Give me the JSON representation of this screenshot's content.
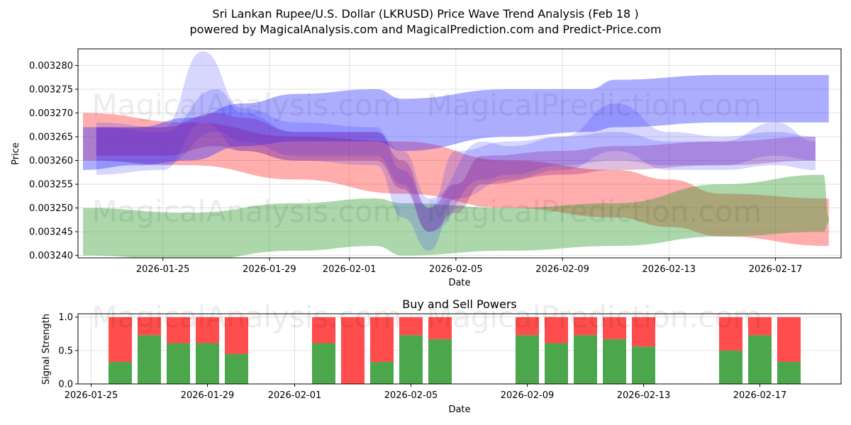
{
  "header": {
    "title_line1": "Sri Lankan Rupee/U.S. Dollar (LKRUSD) Price Wave Trend Analysis (Feb 18 )",
    "title_line2": "powered by MagicalAnalysis.com and MagicalPrediction.com and Predict-Price.com"
  },
  "watermarks": [
    "MagicalAnalysis.com",
    "MagicalPrediction.com"
  ],
  "colors": {
    "red": "#ff3333",
    "green": "#2e9a2e",
    "blue": "#3333ff",
    "buy": "#4ca64c",
    "sell": "#ff4c4c"
  },
  "chart_data": [
    {
      "type": "area",
      "title": "",
      "xlabel": "Date",
      "ylabel": "Price",
      "grid": true,
      "x_ticks": [
        "2026-01-25",
        "2026-01-29",
        "2026-02-01",
        "2026-02-05",
        "2026-02-09",
        "2026-02-13",
        "2026-02-17"
      ],
      "y_ticks": [
        "0.003240",
        "0.003245",
        "0.003250",
        "0.003255",
        "0.003260",
        "0.003265",
        "0.003270",
        "0.003275",
        "0.003280"
      ],
      "ylim": [
        0.0032395,
        0.0032835
      ],
      "x_start": "2026-01-22",
      "x_end": "2026-02-19",
      "series": [
        {
          "name": "red-trend-band",
          "color": "red",
          "opacity": 0.4,
          "x": [
            0,
            4,
            8,
            12,
            16,
            20,
            22,
            24,
            28
          ],
          "upper": [
            0.00327,
            0.003268,
            0.003265,
            0.003264,
            0.00326,
            0.003258,
            0.003256,
            0.003253,
            0.003252
          ],
          "lower": [
            0.00326,
            0.003259,
            0.003256,
            0.003253,
            0.00325,
            0.003248,
            0.003246,
            0.003244,
            0.003242
          ]
        },
        {
          "name": "green-trend-band",
          "color": "green",
          "opacity": 0.4,
          "x": [
            0,
            4,
            8,
            11,
            12,
            16,
            20,
            24,
            27.8,
            28
          ],
          "upper": [
            0.00325,
            0.003249,
            0.003251,
            0.003252,
            0.003251,
            0.00325,
            0.003251,
            0.003255,
            0.003257,
            0.003248
          ],
          "lower": [
            0.00324,
            0.003239,
            0.003241,
            0.003242,
            0.00324,
            0.003241,
            0.003242,
            0.003244,
            0.003245,
            0.003247
          ]
        },
        {
          "name": "blue-trend-band-upper",
          "color": "blue",
          "opacity": 0.4,
          "x": [
            0,
            2,
            4,
            6,
            8,
            11,
            12,
            16,
            19,
            20,
            24,
            28
          ],
          "upper": [
            0.003267,
            0.003267,
            0.003269,
            0.003272,
            0.003274,
            0.003275,
            0.003273,
            0.003275,
            0.003275,
            0.003277,
            0.003278,
            0.003278
          ],
          "lower": [
            0.003258,
            0.003259,
            0.00326,
            0.003263,
            0.003264,
            0.003264,
            0.003262,
            0.003265,
            0.003266,
            0.003267,
            0.003268,
            0.003268
          ]
        },
        {
          "name": "blue-wave-1",
          "color": "blue",
          "opacity": 0.2,
          "x": [
            0.5,
            3,
            4.5,
            6,
            8,
            11,
            12,
            13,
            14,
            16,
            18,
            20,
            22,
            24,
            26,
            27.5
          ],
          "upper": [
            0.003268,
            0.003267,
            0.003283,
            0.003271,
            0.003268,
            0.003267,
            0.003258,
            0.00325,
            0.003262,
            0.003264,
            0.003265,
            0.003272,
            0.003266,
            0.003265,
            0.003266,
            0.003265
          ],
          "lower": [
            0.003257,
            0.003258,
            0.003268,
            0.003262,
            0.00326,
            0.003259,
            0.003248,
            0.003241,
            0.003252,
            0.003256,
            0.003258,
            0.003262,
            0.003258,
            0.003258,
            0.003259,
            0.003258
          ]
        },
        {
          "name": "blue-wave-2",
          "color": "blue",
          "opacity": 0.2,
          "x": [
            0.5,
            3,
            5,
            6,
            8,
            11,
            12,
            13,
            15,
            16,
            18,
            20,
            22,
            24,
            26,
            27.5
          ],
          "upper": [
            0.003267,
            0.003266,
            0.003275,
            0.00327,
            0.003266,
            0.003266,
            0.003262,
            0.003252,
            0.003264,
            0.003263,
            0.003265,
            0.003266,
            0.003264,
            0.003264,
            0.003268,
            0.003264
          ],
          "lower": [
            0.00326,
            0.003259,
            0.003266,
            0.003264,
            0.003261,
            0.003261,
            0.003255,
            0.003245,
            0.003256,
            0.003257,
            0.003259,
            0.00326,
            0.003259,
            0.003259,
            0.003261,
            0.00326
          ]
        },
        {
          "name": "purple-wave-1",
          "color": "purple",
          "opacity": 0.25,
          "x": [
            0.5,
            3,
            5,
            6,
            8,
            11,
            12,
            13,
            14,
            15,
            18,
            20,
            24,
            27.5
          ],
          "upper": [
            0.003267,
            0.003267,
            0.00327,
            0.003269,
            0.003266,
            0.003266,
            0.00326,
            0.00325,
            0.003255,
            0.003261,
            0.003262,
            0.003263,
            0.003264,
            0.003265
          ],
          "lower": [
            0.003261,
            0.003261,
            0.003263,
            0.003262,
            0.00326,
            0.00326,
            0.003254,
            0.003245,
            0.003249,
            0.003255,
            0.003257,
            0.003258,
            0.003259,
            0.00326
          ]
        }
      ]
    },
    {
      "type": "bar",
      "title": "Buy and Sell Powers",
      "xlabel": "Date",
      "ylabel": "Signal Strength",
      "ylim": [
        0,
        1.05
      ],
      "y_ticks": [
        "0.0",
        "0.5",
        "1.0"
      ],
      "x_ticks": [
        "2026-01-25",
        "2026-01-29",
        "2026-02-01",
        "2026-02-05",
        "2026-02-09",
        "2026-02-13",
        "2026-02-17"
      ],
      "x_start": "2026-01-24.5",
      "categories": [
        "2026-01-26",
        "2026-01-27",
        "2026-01-28",
        "2026-01-29",
        "2026-01-30",
        "2026-02-02",
        "2026-02-03",
        "2026-02-04",
        "2026-02-05",
        "2026-02-06",
        "2026-02-09",
        "2026-02-10",
        "2026-02-11",
        "2026-02-12",
        "2026-02-13",
        "2026-02-16",
        "2026-02-17",
        "2026-02-18"
      ],
      "day_offsets": [
        1.5,
        2.5,
        3.5,
        4.5,
        5.5,
        8.5,
        9.5,
        10.5,
        11.5,
        12.5,
        15.5,
        16.5,
        17.5,
        18.5,
        19.5,
        22.5,
        23.5,
        24.5
      ],
      "series": [
        {
          "name": "Buy",
          "color": "buy",
          "values": [
            0.33,
            0.73,
            0.61,
            0.61,
            0.45,
            0.61,
            0.0,
            0.33,
            0.73,
            0.67,
            0.73,
            0.61,
            0.73,
            0.67,
            0.56,
            0.5,
            0.73,
            0.33
          ]
        },
        {
          "name": "Sell",
          "color": "sell",
          "values": [
            0.67,
            0.27,
            0.39,
            0.39,
            0.55,
            0.39,
            1.0,
            0.67,
            0.27,
            0.33,
            0.27,
            0.39,
            0.27,
            0.33,
            0.44,
            0.5,
            0.27,
            0.67
          ]
        }
      ]
    }
  ]
}
